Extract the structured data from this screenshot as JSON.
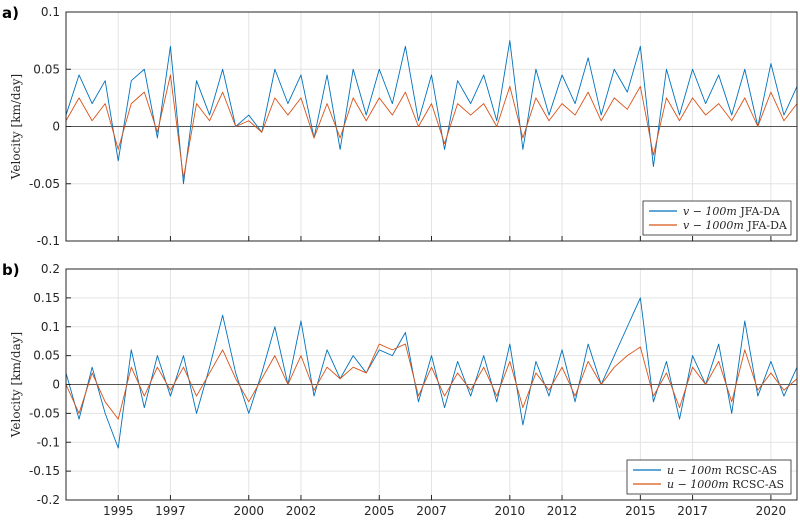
{
  "chart_data": [
    {
      "type": "line",
      "panel_label": "a)",
      "ylabel": "Velocity [km/day]",
      "ylim": [
        -0.1,
        0.1
      ],
      "yticks": [
        -0.1,
        -0.05,
        0,
        0.05,
        0.1
      ],
      "ytick_labels": [
        "-0.1",
        "-0.05",
        "0",
        "0.05",
        "0.1"
      ],
      "xlim": [
        1993.0,
        2021.0
      ],
      "xticks": [
        1995,
        1997,
        2000,
        2002,
        2005,
        2007,
        2010,
        2012,
        2015,
        2017,
        2020
      ],
      "xtick_labels": [
        "1995",
        "1997",
        "2000",
        "2002",
        "2005",
        "2007",
        "2010",
        "2012",
        "2015",
        "2017",
        "2020"
      ],
      "show_xtick_labels": false,
      "grid": true,
      "zero_line": true,
      "legend_position": "bottom-right",
      "series": [
        {
          "name": "v − 100m JFA-DA",
          "color": "#0072BD",
          "x": [
            1993.0,
            1993.5,
            1994.0,
            1994.5,
            1995.0,
            1995.5,
            1996.0,
            1996.5,
            1997.0,
            1997.5,
            1998.0,
            1998.5,
            1999.0,
            1999.5,
            2000.0,
            2000.5,
            2001.0,
            2001.5,
            2002.0,
            2002.5,
            2003.0,
            2003.5,
            2004.0,
            2004.5,
            2005.0,
            2005.5,
            2006.0,
            2006.5,
            2007.0,
            2007.5,
            2008.0,
            2008.5,
            2009.0,
            2009.5,
            2010.0,
            2010.5,
            2011.0,
            2011.5,
            2012.0,
            2012.5,
            2013.0,
            2013.5,
            2014.0,
            2014.5,
            2015.0,
            2015.5,
            2016.0,
            2016.5,
            2017.0,
            2017.5,
            2018.0,
            2018.5,
            2019.0,
            2019.5,
            2020.0,
            2020.5,
            2021.0
          ],
          "y": [
            0.01,
            0.045,
            0.02,
            0.04,
            -0.03,
            0.04,
            0.05,
            -0.01,
            0.07,
            -0.05,
            0.04,
            0.01,
            0.05,
            0.0,
            0.01,
            -0.005,
            0.05,
            0.02,
            0.045,
            -0.01,
            0.045,
            -0.02,
            0.05,
            0.01,
            0.05,
            0.02,
            0.07,
            0.005,
            0.045,
            -0.02,
            0.04,
            0.02,
            0.045,
            0.005,
            0.075,
            -0.02,
            0.05,
            0.01,
            0.045,
            0.02,
            0.06,
            0.01,
            0.05,
            0.03,
            0.07,
            -0.035,
            0.05,
            0.01,
            0.05,
            0.02,
            0.045,
            0.01,
            0.05,
            0.0,
            0.055,
            0.01,
            0.035
          ]
        },
        {
          "name": "v − 1000m JFA-DA",
          "color": "#D95319",
          "x": [
            1993.0,
            1993.5,
            1994.0,
            1994.5,
            1995.0,
            1995.5,
            1996.0,
            1996.5,
            1997.0,
            1997.5,
            1998.0,
            1998.5,
            1999.0,
            1999.5,
            2000.0,
            2000.5,
            2001.0,
            2001.5,
            2002.0,
            2002.5,
            2003.0,
            2003.5,
            2004.0,
            2004.5,
            2005.0,
            2005.5,
            2006.0,
            2006.5,
            2007.0,
            2007.5,
            2008.0,
            2008.5,
            2009.0,
            2009.5,
            2010.0,
            2010.5,
            2011.0,
            2011.5,
            2012.0,
            2012.5,
            2013.0,
            2013.5,
            2014.0,
            2014.5,
            2015.0,
            2015.5,
            2016.0,
            2016.5,
            2017.0,
            2017.5,
            2018.0,
            2018.5,
            2019.0,
            2019.5,
            2020.0,
            2020.5,
            2021.0
          ],
          "y": [
            0.005,
            0.025,
            0.005,
            0.02,
            -0.02,
            0.02,
            0.03,
            -0.005,
            0.045,
            -0.045,
            0.02,
            0.005,
            0.03,
            0.0,
            0.005,
            -0.005,
            0.025,
            0.01,
            0.025,
            -0.01,
            0.02,
            -0.01,
            0.025,
            0.005,
            0.025,
            0.01,
            0.03,
            0.0,
            0.02,
            -0.015,
            0.02,
            0.01,
            0.02,
            0.0,
            0.035,
            -0.01,
            0.025,
            0.005,
            0.02,
            0.01,
            0.03,
            0.005,
            0.025,
            0.015,
            0.035,
            -0.025,
            0.025,
            0.005,
            0.025,
            0.01,
            0.02,
            0.005,
            0.025,
            0.0,
            0.03,
            0.005,
            0.02
          ]
        }
      ]
    },
    {
      "type": "line",
      "panel_label": "b)",
      "ylabel": "Velocity [km/day]",
      "ylim": [
        -0.2,
        0.2
      ],
      "yticks": [
        -0.2,
        -0.15,
        -0.1,
        -0.05,
        0,
        0.05,
        0.1,
        0.15,
        0.2
      ],
      "ytick_labels": [
        "-0.2",
        "-0.15",
        "-0.1",
        "-0.05",
        "0",
        "0.05",
        "0.1",
        "0.15",
        "0.2"
      ],
      "xlim": [
        1993.0,
        2021.0
      ],
      "xticks": [
        1995,
        1997,
        2000,
        2002,
        2005,
        2007,
        2010,
        2012,
        2015,
        2017,
        2020
      ],
      "xtick_labels": [
        "1995",
        "1997",
        "2000",
        "2002",
        "2005",
        "2007",
        "2010",
        "2012",
        "2015",
        "2017",
        "2020"
      ],
      "show_xtick_labels": true,
      "grid": true,
      "zero_line": true,
      "legend_position": "bottom-right",
      "series": [
        {
          "name": "u − 100m RCSC-AS",
          "color": "#0072BD",
          "x": [
            1993.0,
            1993.5,
            1994.0,
            1994.5,
            1995.0,
            1995.5,
            1996.0,
            1996.5,
            1997.0,
            1997.5,
            1998.0,
            1998.5,
            1999.0,
            1999.5,
            2000.0,
            2000.5,
            2001.0,
            2001.5,
            2002.0,
            2002.5,
            2003.0,
            2003.5,
            2004.0,
            2004.5,
            2005.0,
            2005.5,
            2006.0,
            2006.5,
            2007.0,
            2007.5,
            2008.0,
            2008.5,
            2009.0,
            2009.5,
            2010.0,
            2010.5,
            2011.0,
            2011.5,
            2012.0,
            2012.5,
            2013.0,
            2013.5,
            2014.0,
            2014.5,
            2015.0,
            2015.5,
            2016.0,
            2016.5,
            2017.0,
            2017.5,
            2018.0,
            2018.5,
            2019.0,
            2019.5,
            2020.0,
            2020.5,
            2021.0
          ],
          "y": [
            0.02,
            -0.06,
            0.03,
            -0.05,
            -0.11,
            0.06,
            -0.04,
            0.05,
            -0.02,
            0.05,
            -0.05,
            0.03,
            0.12,
            0.02,
            -0.05,
            0.02,
            0.1,
            0.0,
            0.11,
            -0.02,
            0.06,
            0.01,
            0.05,
            0.02,
            0.06,
            0.05,
            0.09,
            -0.03,
            0.05,
            -0.04,
            0.04,
            -0.02,
            0.05,
            -0.03,
            0.07,
            -0.07,
            0.04,
            -0.02,
            0.06,
            -0.03,
            0.07,
            0.0,
            0.05,
            0.1,
            0.15,
            -0.03,
            0.04,
            -0.06,
            0.05,
            0.0,
            0.07,
            -0.05,
            0.11,
            -0.02,
            0.04,
            -0.02,
            0.03
          ]
        },
        {
          "name": "u − 1000m RCSC-AS",
          "color": "#D95319",
          "x": [
            1993.0,
            1993.5,
            1994.0,
            1994.5,
            1995.0,
            1995.5,
            1996.0,
            1996.5,
            1997.0,
            1997.5,
            1998.0,
            1998.5,
            1999.0,
            1999.5,
            2000.0,
            2000.5,
            2001.0,
            2001.5,
            2002.0,
            2002.5,
            2003.0,
            2003.5,
            2004.0,
            2004.5,
            2005.0,
            2005.5,
            2006.0,
            2006.5,
            2007.0,
            2007.5,
            2008.0,
            2008.5,
            2009.0,
            2009.5,
            2010.0,
            2010.5,
            2011.0,
            2011.5,
            2012.0,
            2012.5,
            2013.0,
            2013.5,
            2014.0,
            2014.5,
            2015.0,
            2015.5,
            2016.0,
            2016.5,
            2017.0,
            2017.5,
            2018.0,
            2018.5,
            2019.0,
            2019.5,
            2020.0,
            2020.5,
            2021.0
          ],
          "y": [
            0.0,
            -0.05,
            0.02,
            -0.03,
            -0.06,
            0.03,
            -0.02,
            0.03,
            -0.01,
            0.03,
            -0.02,
            0.02,
            0.06,
            0.01,
            -0.03,
            0.01,
            0.05,
            0.0,
            0.05,
            -0.01,
            0.03,
            0.01,
            0.03,
            0.02,
            0.07,
            0.06,
            0.07,
            -0.02,
            0.03,
            -0.02,
            0.02,
            -0.01,
            0.03,
            -0.02,
            0.04,
            -0.04,
            0.02,
            -0.01,
            0.03,
            -0.02,
            0.04,
            0.0,
            0.03,
            0.05,
            0.065,
            -0.02,
            0.02,
            -0.04,
            0.03,
            0.0,
            0.04,
            -0.03,
            0.06,
            -0.01,
            0.02,
            -0.01,
            0.01
          ]
        }
      ]
    }
  ]
}
